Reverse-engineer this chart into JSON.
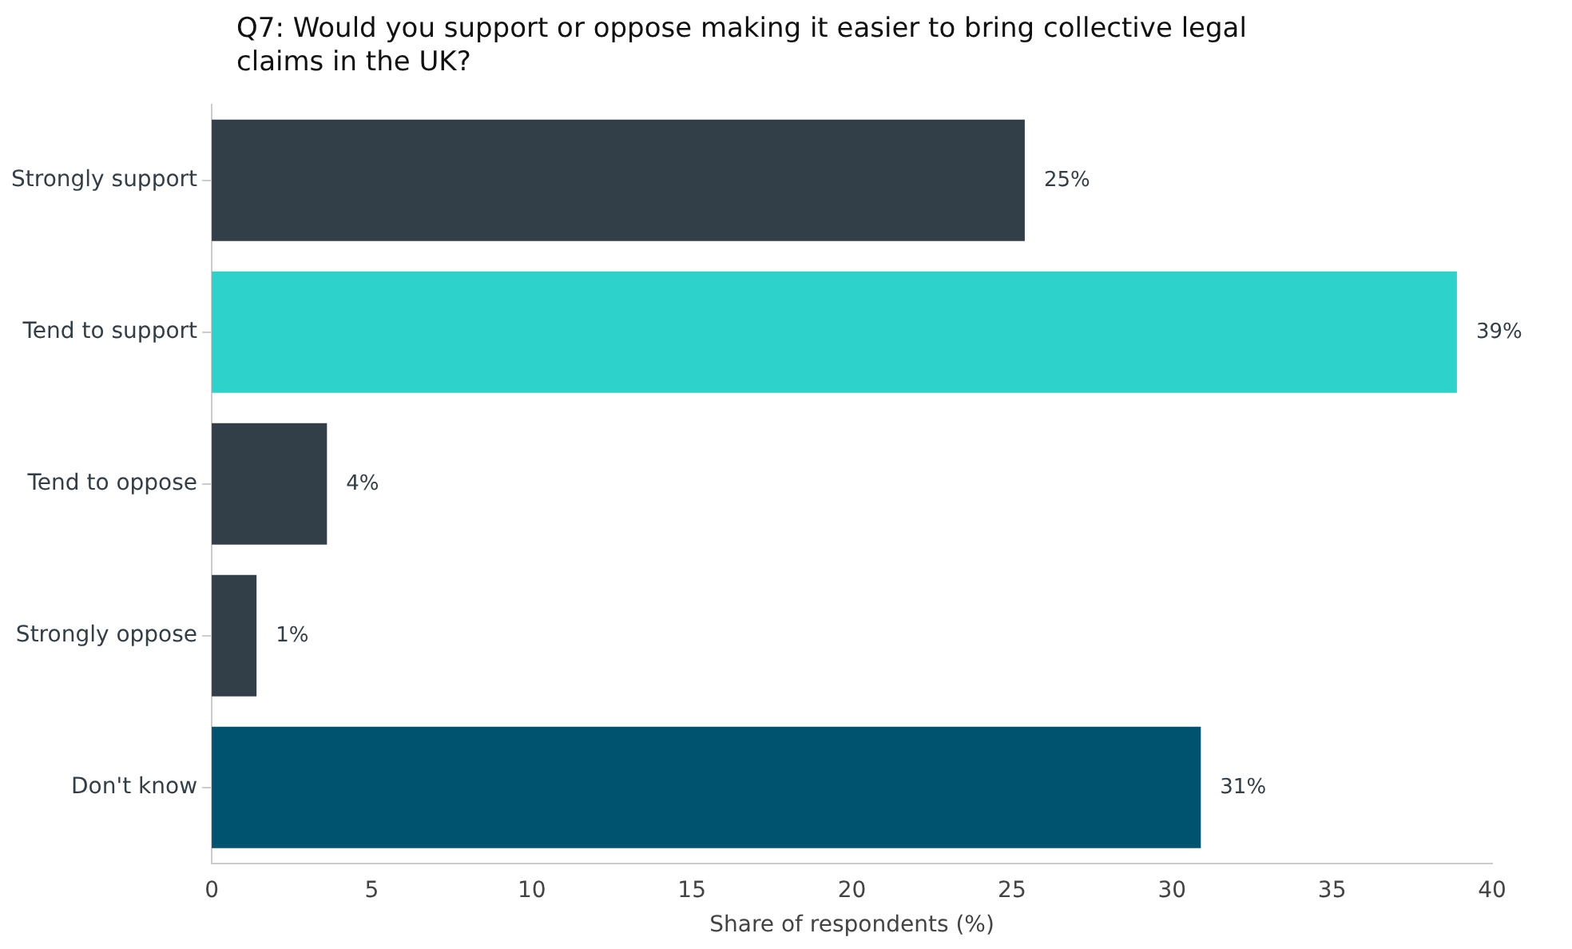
{
  "chart_data": {
    "type": "bar",
    "orientation": "horizontal",
    "title": "Q7: Would you support or oppose making it easier to bring collective legal claims in the UK?",
    "xlabel": "Share of respondents (%)",
    "categories": [
      "Strongly support",
      "Tend to support",
      "Tend to oppose",
      "Strongly oppose",
      "Don't know"
    ],
    "values": [
      25.4,
      38.9,
      3.6,
      1.4,
      30.9
    ],
    "colors": [
      "#333f48",
      "#2dd3ca",
      "#333f48",
      "#333f48",
      "#00536f"
    ],
    "value_labels": [
      "25%",
      "39%",
      "4%",
      "1%",
      "31%"
    ],
    "xlim": [
      0,
      40
    ],
    "xticks": [
      0,
      5,
      10,
      15,
      20,
      25,
      30,
      35,
      40
    ],
    "grid": false,
    "legend": false
  }
}
